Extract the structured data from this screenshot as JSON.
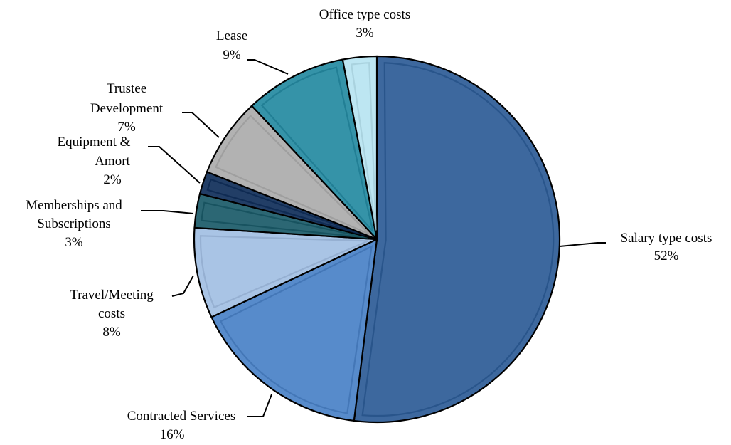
{
  "chart_data": {
    "type": "pie",
    "start_angle_deg": 0,
    "direction": "clockwise",
    "slices": [
      {
        "name": "Salary type costs",
        "value": 52,
        "label": "52%",
        "color": "#3D689E"
      },
      {
        "name": "Contracted Services",
        "value": 16,
        "label": "16%",
        "color": "#578BCB"
      },
      {
        "name": "Travel/Meeting costs",
        "value": 8,
        "label": "8%",
        "color": "#A9C4E5"
      },
      {
        "name": "Memberships and Subscriptions",
        "value": 3,
        "label": "3%",
        "color": "#2C6774"
      },
      {
        "name": "Equipment & Amort",
        "value": 2,
        "label": "2%",
        "color": "#223E66"
      },
      {
        "name": "Trustee Development",
        "value": 7,
        "label": "7%",
        "color": "#B2B2B2"
      },
      {
        "name": "Lease",
        "value": 9,
        "label": "9%",
        "color": "#3593A8"
      },
      {
        "name": "Office type costs",
        "value": 3,
        "label": "3%",
        "color": "#BDE6F2"
      }
    ]
  }
}
